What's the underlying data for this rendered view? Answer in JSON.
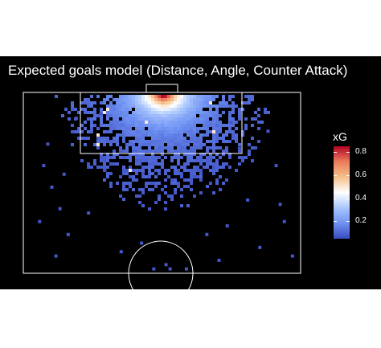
{
  "chart_data": {
    "type": "heatmap",
    "title": "Expected goals model (Distance, Angle, Counter Attack)",
    "legend": {
      "title": "xG",
      "ticks": [
        0.2,
        0.4,
        0.6,
        0.8
      ],
      "range": [
        0.05,
        0.85
      ],
      "placement": "right"
    },
    "colorscale": [
      "#3b4cc0",
      "#6f92f3",
      "#aac7fd",
      "#ffffff",
      "#f7c08a",
      "#ec7c5b",
      "#b40426"
    ],
    "grid": false,
    "background": "#000000",
    "line_color": "#ffffff",
    "pitch": {
      "x_range": [
        0,
        68
      ],
      "y_range": [
        0,
        42
      ],
      "goal_at": "top"
    },
    "goal_center_x": 34,
    "xg_peak": 0.85,
    "shot_dots": [
      [
        6,
        12
      ],
      [
        7,
        22
      ],
      [
        10,
        19
      ],
      [
        9,
        27
      ],
      [
        4,
        30
      ],
      [
        62,
        17
      ],
      [
        64,
        30
      ],
      [
        63,
        26
      ],
      [
        11,
        33
      ],
      [
        58,
        36
      ],
      [
        66,
        38
      ],
      [
        8,
        38
      ],
      [
        35,
        40
      ],
      [
        32,
        41
      ],
      [
        36,
        41
      ],
      [
        40,
        41
      ],
      [
        19,
        5
      ],
      [
        51,
        7
      ],
      [
        48,
        39
      ],
      [
        24,
        37
      ],
      [
        16,
        28
      ],
      [
        55,
        25
      ],
      [
        45,
        33
      ],
      [
        29,
        35
      ],
      [
        20,
        18
      ],
      [
        53,
        13
      ],
      [
        5,
        17
      ],
      [
        60,
        9
      ],
      [
        13,
        6
      ],
      [
        50,
        31
      ]
    ]
  }
}
